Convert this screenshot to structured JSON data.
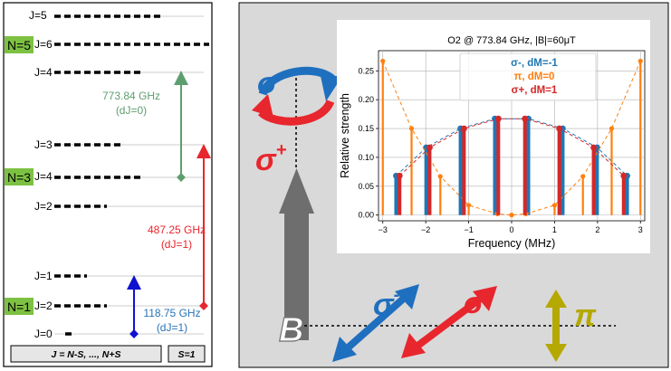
{
  "left_panel": {
    "levels": {
      "n5_j5": "J=5",
      "n5_j6": "J=6",
      "n5_j4": "J=4",
      "n3_j3": "J=3",
      "n3_j4": "J=4",
      "n3_j2": "J=2",
      "n1_j1": "J=1",
      "n1_j2": "J=2",
      "n1_j0": "J=0"
    },
    "n_labels": {
      "n5": "N=5",
      "n3": "N=3",
      "n1": "N=1"
    },
    "transitions": [
      {
        "freq": "773.84 GHz",
        "rule": "(dJ=0)",
        "color": "#5e9e6e"
      },
      {
        "freq": "487.25 GHz",
        "rule": "(dJ=1)",
        "color": "#e8262d"
      },
      {
        "freq": "118.75 GHz",
        "rule": "(dJ=1)",
        "color": "#2a73b6"
      }
    ],
    "footer": {
      "j_rule": "J = N-S, ..., N+S",
      "spin": "S=1"
    },
    "n_label_bg": "#7dc142"
  },
  "right_panel": {
    "bg_color": "#d9d9d9",
    "field_label": "B",
    "sigma_minus": "σ",
    "sigma_minus_sup": "-",
    "sigma_plus": "σ",
    "sigma_plus_sup": "+",
    "pi": "π",
    "colors": {
      "sigma_minus": "#1f6fbf",
      "sigma_plus": "#e8262d",
      "pi": "#b5a800",
      "field": "#6e6e6e"
    }
  },
  "chart_data": {
    "type": "stem",
    "title": "O2 @ 773.84 GHz, |B|=60μT",
    "xlabel": "Frequency (MHz)",
    "ylabel": "Relative strength",
    "xlim": [
      -3.1,
      3.1
    ],
    "ylim": [
      -0.01,
      0.285
    ],
    "xticks": [
      -3,
      -2,
      -1,
      0,
      1,
      2,
      3
    ],
    "yticks": [
      0.0,
      0.05,
      0.1,
      0.15,
      0.2,
      0.25
    ],
    "grid": true,
    "legend_position": "top-right",
    "series": [
      {
        "name": "σ-, dM=-1",
        "color": "#1f77b4",
        "x": [
          -2.69,
          -1.99,
          -1.19,
          -0.39,
          0.39,
          1.19,
          1.99,
          2.69
        ],
        "y": [
          0.068,
          0.117,
          0.15,
          0.167,
          0.167,
          0.15,
          0.117,
          0.068
        ]
      },
      {
        "name": "π, dM=0",
        "color": "#ff7f0e",
        "x": [
          -3.0,
          -2.33,
          -1.66,
          -1.0,
          -0.33,
          0.0,
          0.33,
          1.0,
          1.66,
          2.33,
          3.0
        ],
        "y": [
          0.267,
          0.15,
          0.067,
          0.017,
          0.002,
          0.0,
          0.002,
          0.017,
          0.067,
          0.15,
          0.267
        ]
      },
      {
        "name": "σ+, dM=1",
        "color": "#d62728",
        "x": [
          -2.61,
          -1.91,
          -1.11,
          -0.31,
          0.31,
          1.11,
          1.91,
          2.61
        ],
        "y": [
          0.068,
          0.117,
          0.15,
          0.167,
          0.167,
          0.15,
          0.117,
          0.068
        ]
      }
    ]
  }
}
